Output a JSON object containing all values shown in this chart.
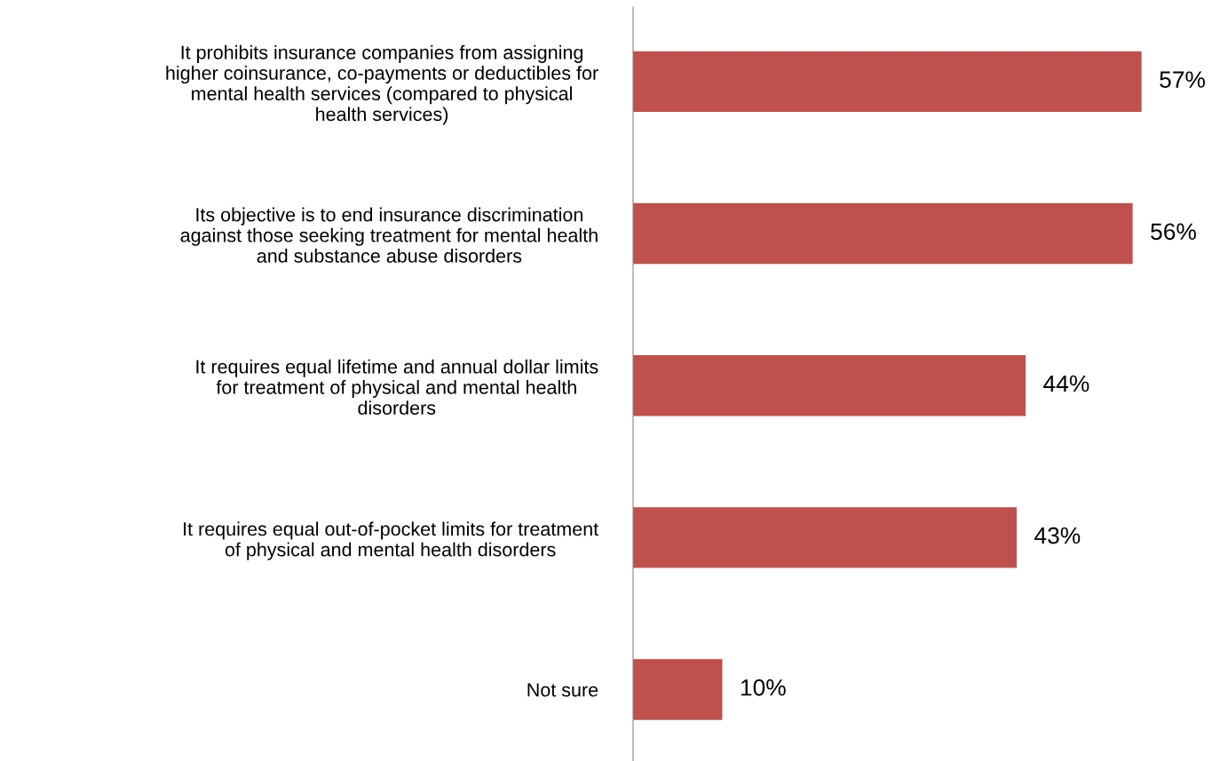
{
  "chart_data": {
    "type": "bar",
    "orientation": "horizontal",
    "categories": [
      "It prohibits insurance companies from assigning\nhigher coinsurance, co-payments or deductibles for\nmental health services (compared to physical\nhealth services)",
      "Its objective is to end insurance discrimination\nagainst those seeking treatment for mental health\nand substance abuse disorders",
      "It requires equal lifetime and annual dollar limits\nfor treatment of physical and mental health\ndisorders",
      "It requires equal out-of-pocket limits for treatment\nof physical and mental health disorders",
      "Not sure"
    ],
    "values": [
      57,
      56,
      44,
      43,
      10
    ],
    "value_labels": [
      "57%",
      "56%",
      "44%",
      "43%",
      "10%"
    ],
    "color": "#c0504d",
    "grid": false,
    "legend": false
  }
}
